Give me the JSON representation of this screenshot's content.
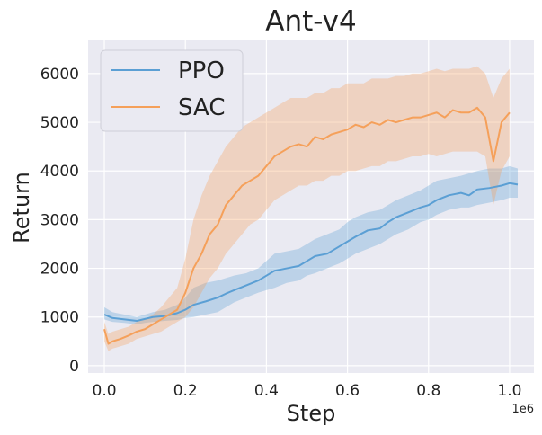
{
  "chart_data": {
    "type": "line",
    "title": "Ant-v4",
    "xlabel": "Step",
    "ylabel": "Return",
    "x_offset_label": "1e6",
    "xlim": [
      -0.04,
      1.06
    ],
    "ylim": [
      -150,
      6700
    ],
    "xticks": [
      0.0,
      0.2,
      0.4,
      0.6,
      0.8,
      1.0
    ],
    "xtick_labels": [
      "0.0",
      "0.2",
      "0.4",
      "0.6",
      "0.8",
      "1.0"
    ],
    "yticks": [
      0,
      1000,
      2000,
      3000,
      4000,
      5000,
      6000
    ],
    "ytick_labels": [
      "0",
      "1000",
      "2000",
      "3000",
      "4000",
      "5000",
      "6000"
    ],
    "grid": true,
    "legend_position": "top-left",
    "series": [
      {
        "name": "PPO",
        "color": "#5b9fd4",
        "x": [
          0.0,
          0.02,
          0.05,
          0.08,
          0.1,
          0.12,
          0.15,
          0.18,
          0.2,
          0.22,
          0.25,
          0.28,
          0.3,
          0.32,
          0.35,
          0.38,
          0.4,
          0.42,
          0.45,
          0.48,
          0.5,
          0.52,
          0.55,
          0.58,
          0.6,
          0.62,
          0.65,
          0.68,
          0.7,
          0.72,
          0.75,
          0.78,
          0.8,
          0.82,
          0.85,
          0.88,
          0.9,
          0.92,
          0.95,
          0.98,
          1.0,
          1.02
        ],
        "y": [
          1050,
          980,
          950,
          920,
          960,
          1000,
          1020,
          1080,
          1150,
          1250,
          1320,
          1400,
          1480,
          1550,
          1650,
          1750,
          1850,
          1950,
          2000,
          2050,
          2150,
          2250,
          2300,
          2450,
          2550,
          2650,
          2780,
          2820,
          2950,
          3050,
          3150,
          3250,
          3300,
          3400,
          3500,
          3550,
          3500,
          3620,
          3650,
          3700,
          3750,
          3720
        ],
        "lower": [
          950,
          900,
          880,
          850,
          880,
          900,
          920,
          940,
          980,
          1000,
          1050,
          1100,
          1200,
          1300,
          1400,
          1500,
          1550,
          1600,
          1700,
          1750,
          1850,
          1900,
          2000,
          2100,
          2200,
          2300,
          2400,
          2500,
          2600,
          2700,
          2800,
          2950,
          3000,
          3100,
          3200,
          3250,
          3250,
          3300,
          3350,
          3400,
          3450,
          3450
        ],
        "upper": [
          1200,
          1100,
          1050,
          1000,
          1050,
          1100,
          1150,
          1250,
          1400,
          1600,
          1700,
          1750,
          1800,
          1850,
          1900,
          2000,
          2150,
          2300,
          2350,
          2400,
          2500,
          2600,
          2700,
          2800,
          2950,
          3050,
          3150,
          3200,
          3300,
          3400,
          3500,
          3600,
          3700,
          3800,
          3850,
          3900,
          3950,
          4000,
          4050,
          4050,
          4100,
          4050
        ]
      },
      {
        "name": "SAC",
        "color": "#f5a05a",
        "x": [
          0.0,
          0.01,
          0.02,
          0.04,
          0.06,
          0.08,
          0.1,
          0.12,
          0.14,
          0.16,
          0.18,
          0.2,
          0.22,
          0.24,
          0.26,
          0.28,
          0.3,
          0.32,
          0.34,
          0.36,
          0.38,
          0.4,
          0.42,
          0.44,
          0.46,
          0.48,
          0.5,
          0.52,
          0.54,
          0.56,
          0.58,
          0.6,
          0.62,
          0.64,
          0.66,
          0.68,
          0.7,
          0.72,
          0.74,
          0.76,
          0.78,
          0.8,
          0.82,
          0.84,
          0.86,
          0.88,
          0.9,
          0.92,
          0.94,
          0.96,
          0.98,
          1.0
        ],
        "y": [
          750,
          450,
          500,
          550,
          620,
          700,
          750,
          850,
          950,
          1050,
          1150,
          1500,
          2000,
          2300,
          2700,
          2900,
          3300,
          3500,
          3700,
          3800,
          3900,
          4100,
          4300,
          4400,
          4500,
          4550,
          4500,
          4700,
          4650,
          4750,
          4800,
          4850,
          4950,
          4900,
          5000,
          4950,
          5050,
          5000,
          5050,
          5100,
          5100,
          5150,
          5200,
          5100,
          5250,
          5200,
          5200,
          5300,
          5100,
          4200,
          5000,
          5200
        ],
        "lower": [
          500,
          300,
          350,
          400,
          450,
          550,
          600,
          650,
          700,
          800,
          900,
          1000,
          1200,
          1500,
          1800,
          2000,
          2300,
          2500,
          2700,
          2900,
          3000,
          3200,
          3400,
          3500,
          3600,
          3700,
          3700,
          3800,
          3800,
          3900,
          3900,
          4000,
          4000,
          4050,
          4100,
          4100,
          4200,
          4200,
          4250,
          4300,
          4300,
          4350,
          4300,
          4350,
          4400,
          4400,
          4400,
          4400,
          4300,
          3300,
          4000,
          4300
        ],
        "upper": [
          900,
          650,
          700,
          750,
          800,
          900,
          950,
          1050,
          1200,
          1400,
          1600,
          2200,
          3000,
          3500,
          3900,
          4200,
          4500,
          4700,
          4900,
          5000,
          5100,
          5200,
          5300,
          5400,
          5500,
          5500,
          5500,
          5600,
          5600,
          5700,
          5700,
          5800,
          5800,
          5800,
          5900,
          5900,
          5900,
          5950,
          5950,
          6000,
          6000,
          6050,
          6100,
          6050,
          6100,
          6100,
          6100,
          6150,
          6000,
          5500,
          5900,
          6100
        ]
      }
    ]
  }
}
